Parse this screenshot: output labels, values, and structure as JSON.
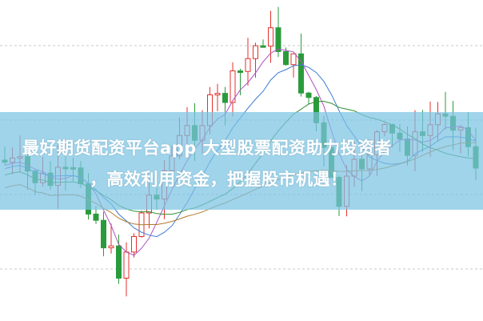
{
  "banner": {
    "lines": [
      "最好期货配资平台app 大型股票配资助力投资者",
      "，高效利用资金，把握股市机遇！"
    ]
  }
}
